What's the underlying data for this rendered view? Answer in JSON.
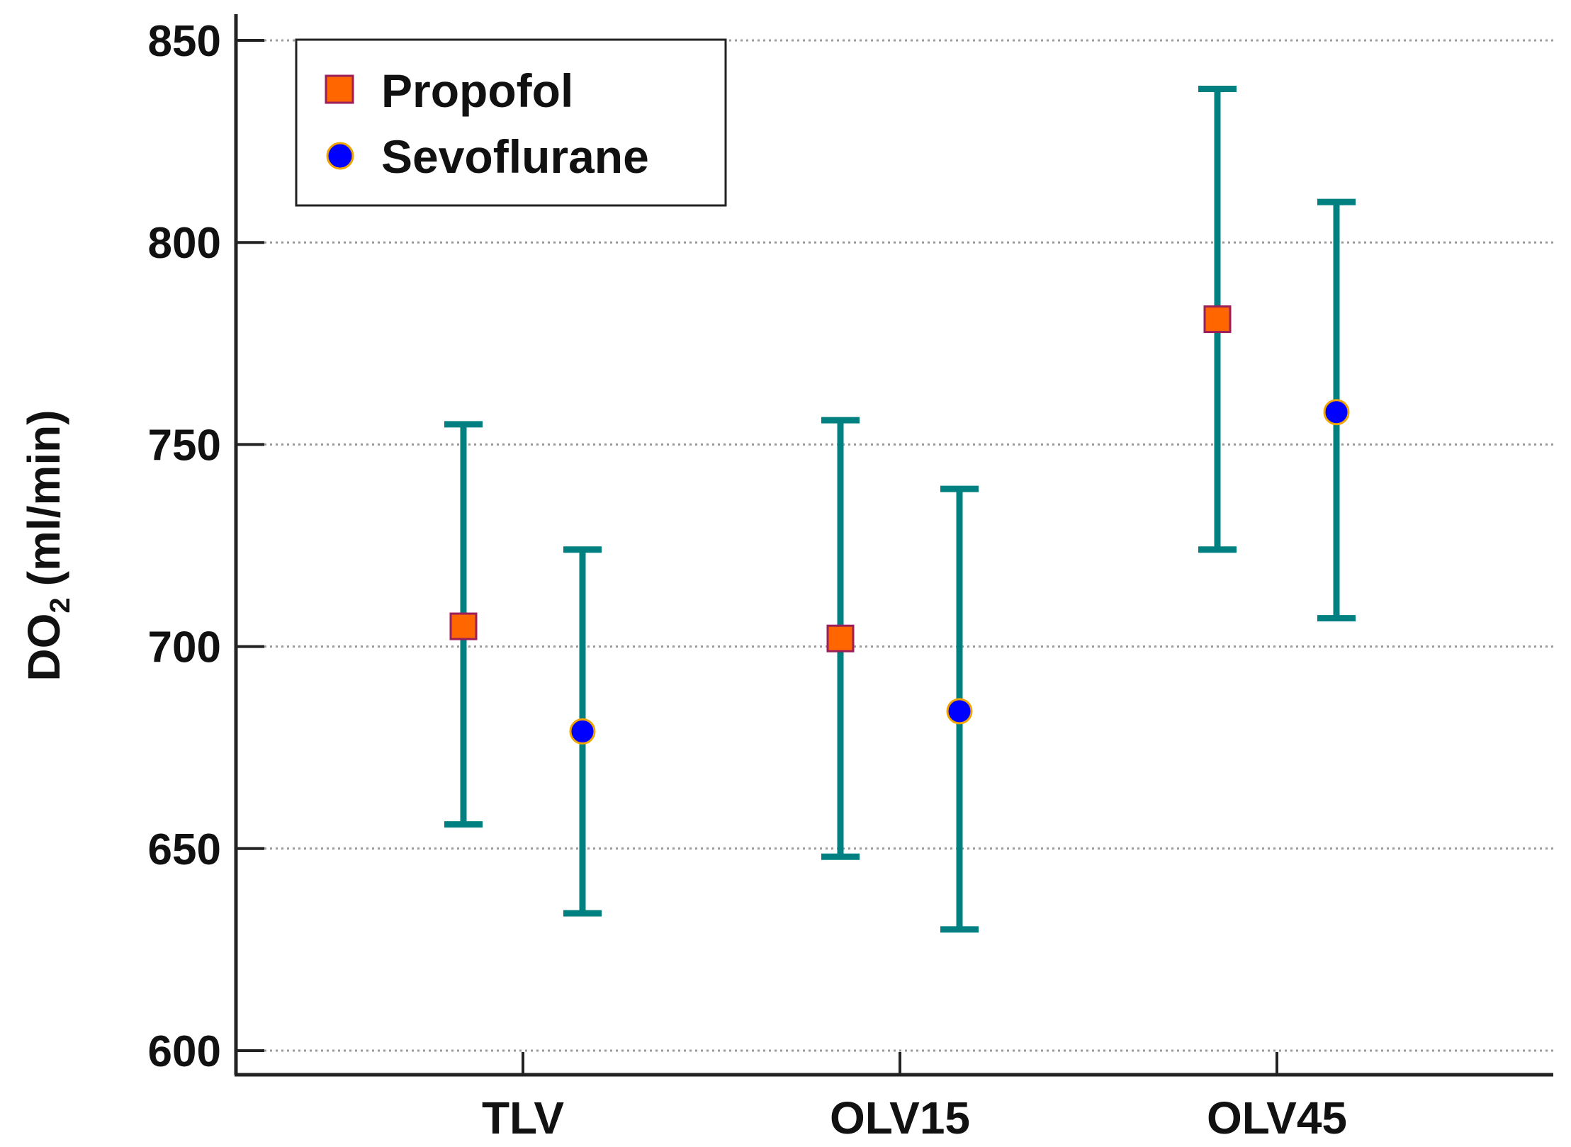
{
  "chart_data": {
    "type": "scatter",
    "title": "",
    "xlabel": "",
    "ylabel": {
      "main": "DO",
      "subscript": "2",
      "unit": "(ml/min)"
    },
    "ylim": [
      600,
      850
    ],
    "yticks": [
      600,
      650,
      700,
      750,
      800,
      850
    ],
    "grid": "horizontal dotted",
    "categories": [
      "TLV",
      "OLV15",
      "OLV45"
    ],
    "legend": {
      "placement": "top-left"
    },
    "series": [
      {
        "name": "Propofol",
        "marker": "square",
        "fill": "#ff6600",
        "edge": "#9b1f5a",
        "values": [
          705,
          702,
          781
        ],
        "lower": [
          656,
          648,
          724
        ],
        "upper": [
          755,
          756,
          838
        ]
      },
      {
        "name": "Sevoflurane",
        "marker": "circle",
        "fill": "#0000ff",
        "edge": "#f0a500",
        "values": [
          679,
          684,
          758
        ],
        "lower": [
          634,
          630,
          707
        ],
        "upper": [
          724,
          739,
          810
        ]
      }
    ],
    "errorbar_color": "#008080"
  }
}
